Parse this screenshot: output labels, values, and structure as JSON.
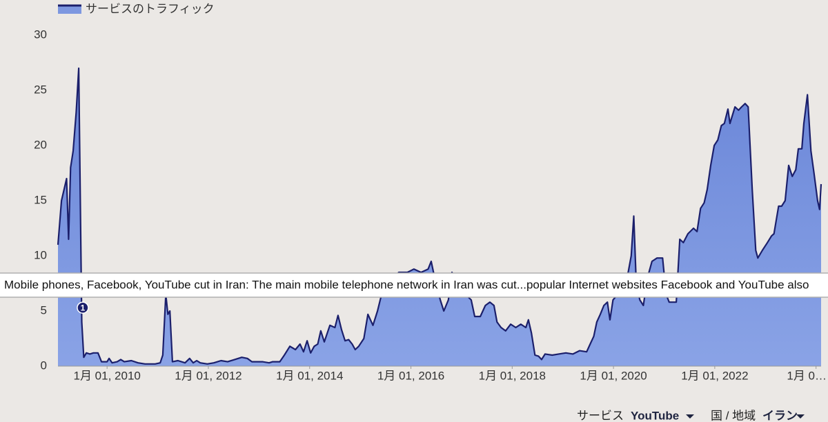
{
  "chart_data": {
    "type": "area",
    "legend": "top-left",
    "grid": false,
    "xlim": [
      2009.03,
      2024.1
    ],
    "xticks": [
      {
        "value": 2010,
        "label": "1月 01, 2010"
      },
      {
        "value": 2012,
        "label": "1月 01, 2012"
      },
      {
        "value": 2014,
        "label": "1月 01, 2014"
      },
      {
        "value": 2016,
        "label": "1月 01, 2016"
      },
      {
        "value": 2018,
        "label": "1月 01, 2018"
      },
      {
        "value": 2020,
        "label": "1月 01, 2020"
      },
      {
        "value": 2022,
        "label": "1月 01, 2022"
      },
      {
        "value": 2024,
        "label": "1月 0…"
      }
    ],
    "ylim": [
      0,
      30
    ],
    "yticks": [
      0,
      5,
      10,
      15,
      20,
      25,
      30
    ],
    "x": [
      2009.03,
      2009.1,
      2009.2,
      2009.24,
      2009.28,
      2009.33,
      2009.39,
      2009.44,
      2009.5,
      2009.54,
      2009.59,
      2009.66,
      2009.73,
      2009.82,
      2009.89,
      2010.0,
      2010.04,
      2010.1,
      2010.2,
      2010.27,
      2010.34,
      2010.48,
      2010.61,
      2010.75,
      2010.95,
      2011.05,
      2011.1,
      2011.16,
      2011.2,
      2011.24,
      2011.29,
      2011.4,
      2011.54,
      2011.63,
      2011.7,
      2011.77,
      2011.84,
      2011.98,
      2012.11,
      2012.25,
      2012.38,
      2012.52,
      2012.66,
      2012.77,
      2012.86,
      2013.07,
      2013.2,
      2013.27,
      2013.41,
      2013.5,
      2013.61,
      2013.72,
      2013.81,
      2013.88,
      2013.95,
      2014.02,
      2014.09,
      2014.16,
      2014.22,
      2014.29,
      2014.4,
      2014.5,
      2014.56,
      2014.63,
      2014.7,
      2014.77,
      2014.84,
      2014.9,
      2014.97,
      2015.07,
      2015.15,
      2015.25,
      2015.34,
      2015.42,
      2015.52,
      2015.65,
      2015.76,
      2015.93,
      2016.06,
      2016.2,
      2016.34,
      2016.4,
      2016.47,
      2016.58,
      2016.65,
      2016.74,
      2016.81,
      2016.88,
      2016.99,
      2017.08,
      2017.19,
      2017.26,
      2017.37,
      2017.47,
      2017.56,
      2017.64,
      2017.7,
      2017.78,
      2017.87,
      2017.97,
      2018.07,
      2018.17,
      2018.27,
      2018.32,
      2018.38,
      2018.45,
      2018.52,
      2018.58,
      2018.65,
      2018.79,
      2018.92,
      2019.06,
      2019.2,
      2019.33,
      2019.47,
      2019.54,
      2019.61,
      2019.67,
      2019.74,
      2019.81,
      2019.88,
      2019.93,
      2019.99,
      2020.08,
      2020.19,
      2020.29,
      2020.35,
      2020.4,
      2020.45,
      2020.52,
      2020.59,
      2020.67,
      2020.76,
      2020.86,
      2020.97,
      2021.04,
      2021.1,
      2021.24,
      2021.31,
      2021.38,
      2021.47,
      2021.58,
      2021.65,
      2021.72,
      2021.79,
      2021.85,
      2021.92,
      2021.99,
      2022.06,
      2022.13,
      2022.19,
      2022.26,
      2022.3,
      2022.4,
      2022.47,
      2022.53,
      2022.6,
      2022.66,
      2022.74,
      2022.81,
      2022.85,
      2022.94,
      2023.04,
      2023.12,
      2023.17,
      2023.26,
      2023.32,
      2023.39,
      2023.46,
      2023.53,
      2023.6,
      2023.65,
      2023.72,
      2023.76,
      2023.83,
      2023.9,
      2023.96,
      2024.03,
      2024.07,
      2024.1
    ],
    "series": [
      {
        "name": "サービスのトラフィック",
        "color": "#7d97e0",
        "line_color": "#1b1f6b",
        "values": [
          11,
          15,
          17,
          11.5,
          18,
          19.5,
          23,
          27,
          4,
          0.8,
          1.2,
          1.1,
          1.2,
          1.2,
          0.4,
          0.4,
          0.7,
          0.3,
          0.4,
          0.6,
          0.4,
          0.5,
          0.3,
          0.2,
          0.2,
          0.3,
          1,
          6.5,
          4.7,
          5,
          0.4,
          0.5,
          0.3,
          0.7,
          0.3,
          0.5,
          0.3,
          0.2,
          0.3,
          0.5,
          0.4,
          0.6,
          0.8,
          0.7,
          0.4,
          0.4,
          0.3,
          0.4,
          0.4,
          1,
          1.8,
          1.5,
          2,
          1.3,
          2.3,
          1.2,
          1.8,
          2,
          3.2,
          2.2,
          3.7,
          3.5,
          4.6,
          3.3,
          2.3,
          2.4,
          2,
          1.5,
          1.8,
          2.5,
          4.7,
          3.7,
          5,
          6.5,
          7.5,
          8,
          8.5,
          8.5,
          8.8,
          8.5,
          8.8,
          9.5,
          8,
          6,
          5,
          6,
          8.5,
          8,
          7.5,
          6.5,
          6,
          4.5,
          4.5,
          5.5,
          5.8,
          5.5,
          4,
          3.5,
          3.2,
          3.8,
          3.5,
          3.8,
          3.5,
          4.2,
          3,
          1,
          0.9,
          0.6,
          1.1,
          1,
          1.1,
          1.2,
          1.1,
          1.4,
          1.3,
          2,
          2.7,
          4,
          4.7,
          5.5,
          5.8,
          4.2,
          6,
          6.5,
          7,
          8.5,
          10,
          13.6,
          7.5,
          6,
          5.5,
          8,
          9.5,
          9.8,
          9.8,
          6.5,
          5.8,
          5.8,
          11.5,
          11.2,
          12,
          12.5,
          12.2,
          14.3,
          14.8,
          16,
          18.2,
          20,
          20.5,
          21.8,
          22,
          23.3,
          22,
          23.5,
          23.2,
          23.5,
          23.8,
          23.5,
          16,
          10.5,
          9.8,
          10.5,
          11.2,
          11.8,
          12,
          14.5,
          14.5,
          15,
          18.2,
          17.2,
          17.8,
          19.7,
          19.7,
          22,
          24.6,
          19.5,
          17.5,
          15,
          14.2,
          16.5
        ]
      }
    ],
    "annotation": {
      "label": "1",
      "x": 2009.52,
      "y": 5.3,
      "text": "Mobile phones, Facebook, YouTube cut in Iran: The main mobile telephone network in Iran was cut...popular Internet websites Facebook and YouTube also"
    }
  },
  "controls": [
    {
      "label": "サービス",
      "value": "YouTube"
    },
    {
      "label": "国 / 地域",
      "value": "イラン"
    }
  ]
}
